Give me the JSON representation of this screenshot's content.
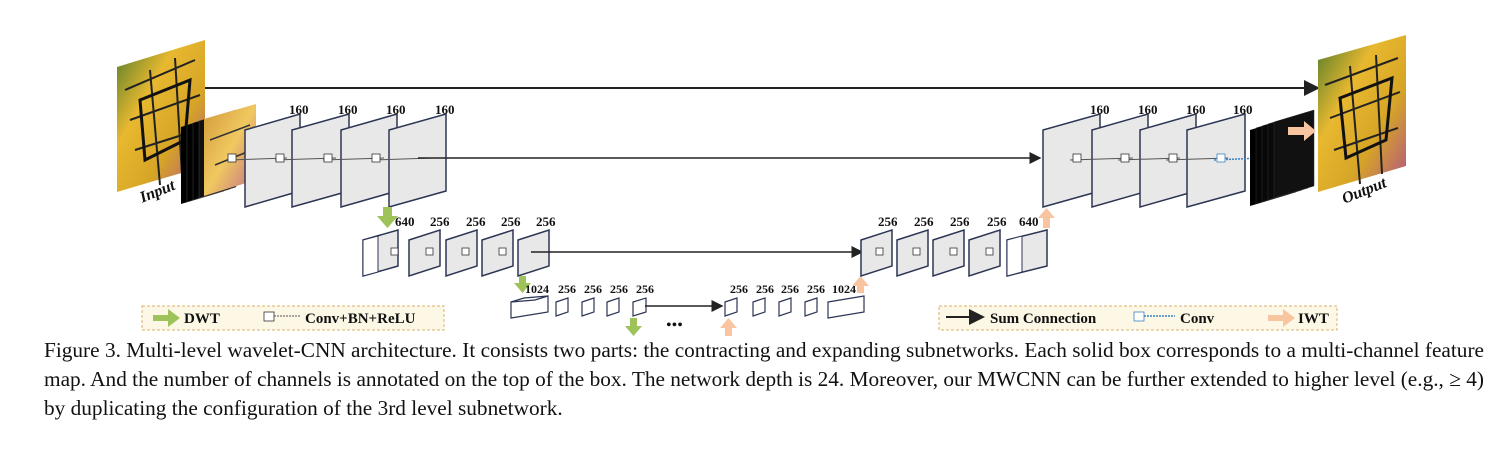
{
  "diagram": {
    "input_label": "Input",
    "output_label": "Output",
    "level1": {
      "left_channels": [
        "160",
        "160",
        "160",
        "160"
      ],
      "right_channels": [
        "160",
        "160",
        "160",
        "160"
      ]
    },
    "level2": {
      "left_channels": [
        "640",
        "256",
        "256",
        "256",
        "256"
      ],
      "right_channels": [
        "256",
        "256",
        "256",
        "256",
        "640"
      ]
    },
    "level3": {
      "left_channels": [
        "1024",
        "256",
        "256",
        "256",
        "256"
      ],
      "right_channels": [
        "256",
        "256",
        "256",
        "256",
        "1024"
      ]
    },
    "ellipsis": "•••",
    "legend_left": {
      "dwt": "DWT",
      "conv_bn_relu": "Conv+BN+ReLU"
    },
    "legend_right": {
      "sum_connection": "Sum Connection",
      "conv": "Conv",
      "iwt": "IWT"
    },
    "colors": {
      "dwt_arrow": "#9dc35a",
      "iwt_arrow": "#f9c5a0",
      "conv_blue": "#3b82c4",
      "legend_bg": "#fdf7e6",
      "legend_border": "#d9b36a",
      "box_face": "#e9e9e9",
      "box_edge": "#2c3554"
    }
  },
  "caption": "Figure 3. Multi-level wavelet-CNN architecture. It consists two parts: the contracting and expanding subnetworks. Each solid box corresponds to a multi-channel feature map. And the number of channels is annotated on the top of the box. The network depth is 24. Moreover, our MWCNN can be further extended to higher level (e.g., ≥ 4) by duplicating the configuration of the 3rd level subnetwork."
}
